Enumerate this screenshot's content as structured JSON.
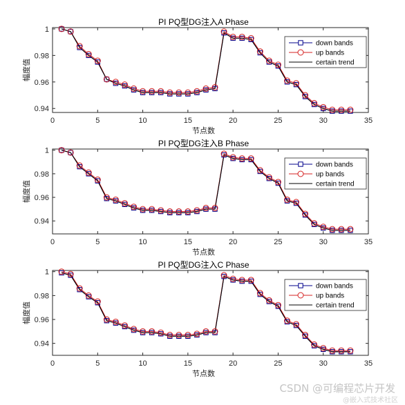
{
  "chart_data": [
    {
      "type": "line",
      "title": "PI PQ型DG注入A Phase",
      "xlabel": "节点数",
      "ylabel": "幅度值",
      "xlim": [
        0,
        35
      ],
      "ylim": [
        0.937,
        1.001
      ],
      "xticks": [
        "0",
        "5",
        "10",
        "15",
        "20",
        "25",
        "30",
        "35"
      ],
      "yticks": [
        "0.94",
        "0.96",
        "0.98",
        "1"
      ],
      "grid": false,
      "legend_position": "top-right",
      "x": [
        1,
        2,
        3,
        4,
        5,
        6,
        7,
        8,
        9,
        10,
        11,
        12,
        13,
        14,
        15,
        16,
        17,
        18,
        19,
        20,
        21,
        22,
        23,
        24,
        25,
        26,
        27,
        28,
        29,
        30,
        31,
        32,
        33
      ],
      "series": [
        {
          "name": "down bands",
          "marker": "square",
          "color": "#00008b",
          "values": [
            1.0,
            0.998,
            0.986,
            0.98,
            0.975,
            0.962,
            0.959,
            0.957,
            0.954,
            0.952,
            0.952,
            0.952,
            0.951,
            0.951,
            0.951,
            0.952,
            0.954,
            0.955,
            0.997,
            0.993,
            0.993,
            0.992,
            0.982,
            0.975,
            0.972,
            0.96,
            0.958,
            0.949,
            0.943,
            0.94,
            0.938,
            0.938,
            0.938
          ]
        },
        {
          "name": "up bands",
          "marker": "circle",
          "color": "#d42020",
          "values": [
            1.0,
            0.998,
            0.987,
            0.981,
            0.976,
            0.962,
            0.96,
            0.958,
            0.955,
            0.953,
            0.953,
            0.953,
            0.952,
            0.952,
            0.952,
            0.953,
            0.955,
            0.956,
            0.998,
            0.994,
            0.994,
            0.993,
            0.983,
            0.976,
            0.973,
            0.961,
            0.959,
            0.95,
            0.944,
            0.941,
            0.939,
            0.939,
            0.939
          ]
        },
        {
          "name": "certain trend",
          "marker": "none",
          "color": "#000000",
          "values": [
            1.0,
            0.998,
            0.986,
            0.98,
            0.975,
            0.962,
            0.959,
            0.957,
            0.954,
            0.952,
            0.952,
            0.952,
            0.951,
            0.951,
            0.951,
            0.952,
            0.954,
            0.955,
            0.997,
            0.993,
            0.993,
            0.992,
            0.982,
            0.975,
            0.972,
            0.96,
            0.958,
            0.949,
            0.943,
            0.94,
            0.938,
            0.938,
            0.938
          ]
        }
      ]
    },
    {
      "type": "line",
      "title": "PI PQ型DG注入B Phase",
      "xlabel": "节点数",
      "ylabel": "幅度值",
      "xlim": [
        0,
        35
      ],
      "ylim": [
        0.929,
        1.001
      ],
      "xticks": [
        "0",
        "5",
        "10",
        "15",
        "20",
        "25",
        "30",
        "35"
      ],
      "yticks": [
        "0.94",
        "0.96",
        "0.98",
        "1"
      ],
      "grid": false,
      "legend_position": "top-right",
      "x": [
        1,
        2,
        3,
        4,
        5,
        6,
        7,
        8,
        9,
        10,
        11,
        12,
        13,
        14,
        15,
        16,
        17,
        18,
        19,
        20,
        21,
        22,
        23,
        24,
        25,
        26,
        27,
        28,
        29,
        30,
        31,
        32,
        33
      ],
      "series": [
        {
          "name": "down bands",
          "marker": "square",
          "color": "#00008b",
          "values": [
            1.0,
            0.998,
            0.986,
            0.98,
            0.974,
            0.959,
            0.957,
            0.954,
            0.951,
            0.949,
            0.949,
            0.948,
            0.947,
            0.947,
            0.947,
            0.948,
            0.95,
            0.95,
            0.996,
            0.993,
            0.992,
            0.992,
            0.982,
            0.976,
            0.972,
            0.957,
            0.955,
            0.945,
            0.937,
            0.934,
            0.932,
            0.932,
            0.932
          ]
        },
        {
          "name": "up bands",
          "marker": "circle",
          "color": "#d42020",
          "values": [
            1.0,
            0.998,
            0.987,
            0.981,
            0.975,
            0.96,
            0.958,
            0.955,
            0.952,
            0.95,
            0.95,
            0.949,
            0.948,
            0.948,
            0.948,
            0.949,
            0.951,
            0.951,
            0.997,
            0.994,
            0.993,
            0.993,
            0.983,
            0.977,
            0.973,
            0.958,
            0.956,
            0.946,
            0.938,
            0.935,
            0.933,
            0.933,
            0.933
          ]
        },
        {
          "name": "certain trend",
          "marker": "none",
          "color": "#000000",
          "values": [
            1.0,
            0.998,
            0.986,
            0.98,
            0.974,
            0.959,
            0.957,
            0.954,
            0.951,
            0.949,
            0.949,
            0.948,
            0.947,
            0.947,
            0.947,
            0.948,
            0.95,
            0.95,
            0.996,
            0.993,
            0.992,
            0.992,
            0.982,
            0.976,
            0.972,
            0.957,
            0.955,
            0.945,
            0.937,
            0.934,
            0.932,
            0.932,
            0.932
          ]
        }
      ]
    },
    {
      "type": "line",
      "title": "PI PQ型DG注入C Phase",
      "xlabel": "节点数",
      "ylabel": "幅度值",
      "xlim": [
        0,
        35
      ],
      "ylim": [
        0.93,
        1.001
      ],
      "xticks": [
        "0",
        "5",
        "10",
        "15",
        "20",
        "25",
        "30",
        "35"
      ],
      "yticks": [
        "0.94",
        "0.96",
        "0.98",
        "1"
      ],
      "grid": false,
      "legend_position": "top-right",
      "x": [
        1,
        2,
        3,
        4,
        5,
        6,
        7,
        8,
        9,
        10,
        11,
        12,
        13,
        14,
        15,
        16,
        17,
        18,
        19,
        20,
        21,
        22,
        23,
        24,
        25,
        26,
        27,
        28,
        29,
        30,
        31,
        32,
        33
      ],
      "series": [
        {
          "name": "down bands",
          "marker": "square",
          "color": "#00008b",
          "values": [
            0.999,
            0.997,
            0.985,
            0.979,
            0.974,
            0.959,
            0.957,
            0.954,
            0.951,
            0.949,
            0.949,
            0.948,
            0.946,
            0.946,
            0.946,
            0.947,
            0.949,
            0.949,
            0.996,
            0.993,
            0.992,
            0.992,
            0.981,
            0.975,
            0.971,
            0.958,
            0.955,
            0.946,
            0.938,
            0.935,
            0.933,
            0.933,
            0.933
          ]
        },
        {
          "name": "up bands",
          "marker": "circle",
          "color": "#d42020",
          "values": [
            1.0,
            0.998,
            0.986,
            0.98,
            0.975,
            0.96,
            0.958,
            0.955,
            0.952,
            0.95,
            0.95,
            0.949,
            0.947,
            0.947,
            0.947,
            0.948,
            0.95,
            0.95,
            0.997,
            0.994,
            0.993,
            0.993,
            0.982,
            0.976,
            0.972,
            0.959,
            0.956,
            0.947,
            0.939,
            0.936,
            0.934,
            0.934,
            0.934
          ]
        },
        {
          "name": "certain trend",
          "marker": "none",
          "color": "#000000",
          "values": [
            0.999,
            0.997,
            0.985,
            0.979,
            0.974,
            0.959,
            0.957,
            0.954,
            0.951,
            0.949,
            0.949,
            0.948,
            0.946,
            0.946,
            0.946,
            0.947,
            0.949,
            0.949,
            0.996,
            0.993,
            0.992,
            0.992,
            0.981,
            0.975,
            0.971,
            0.958,
            0.955,
            0.946,
            0.938,
            0.935,
            0.933,
            0.933,
            0.933
          ]
        }
      ]
    }
  ],
  "watermark": {
    "main": "CSDN @可编程芯片开发",
    "sub": "@嵌入式技术社区"
  }
}
